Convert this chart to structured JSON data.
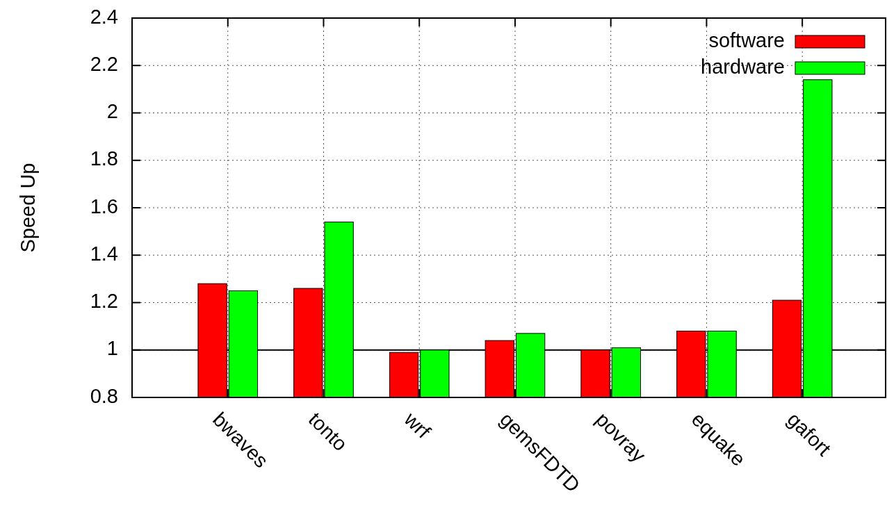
{
  "chart_data": {
    "type": "bar",
    "ylabel": "Speed Up",
    "categories": [
      "bwaves",
      "tonto",
      "wrf",
      "gemsFDTD",
      "povray",
      "equake",
      "gafort"
    ],
    "series": [
      {
        "name": "software",
        "color": "#ff0000",
        "values": [
          1.28,
          1.26,
          0.99,
          1.04,
          1.0,
          1.08,
          1.21
        ]
      },
      {
        "name": "hardware",
        "color": "#00ff00",
        "values": [
          1.25,
          1.54,
          1.0,
          1.07,
          1.01,
          1.08,
          2.14
        ]
      }
    ],
    "ylim": [
      0.8,
      2.4
    ],
    "yticks": [
      {
        "value": 0.8,
        "label": "0.8"
      },
      1,
      1.2,
      1.4,
      1.6,
      1.8,
      2,
      2.2,
      2.4
    ],
    "ref_lines": [
      {
        "axis": "y",
        "value": 1,
        "color": "#000000",
        "line_style": "solid"
      }
    ],
    "grid": true,
    "legend": "top right"
  }
}
